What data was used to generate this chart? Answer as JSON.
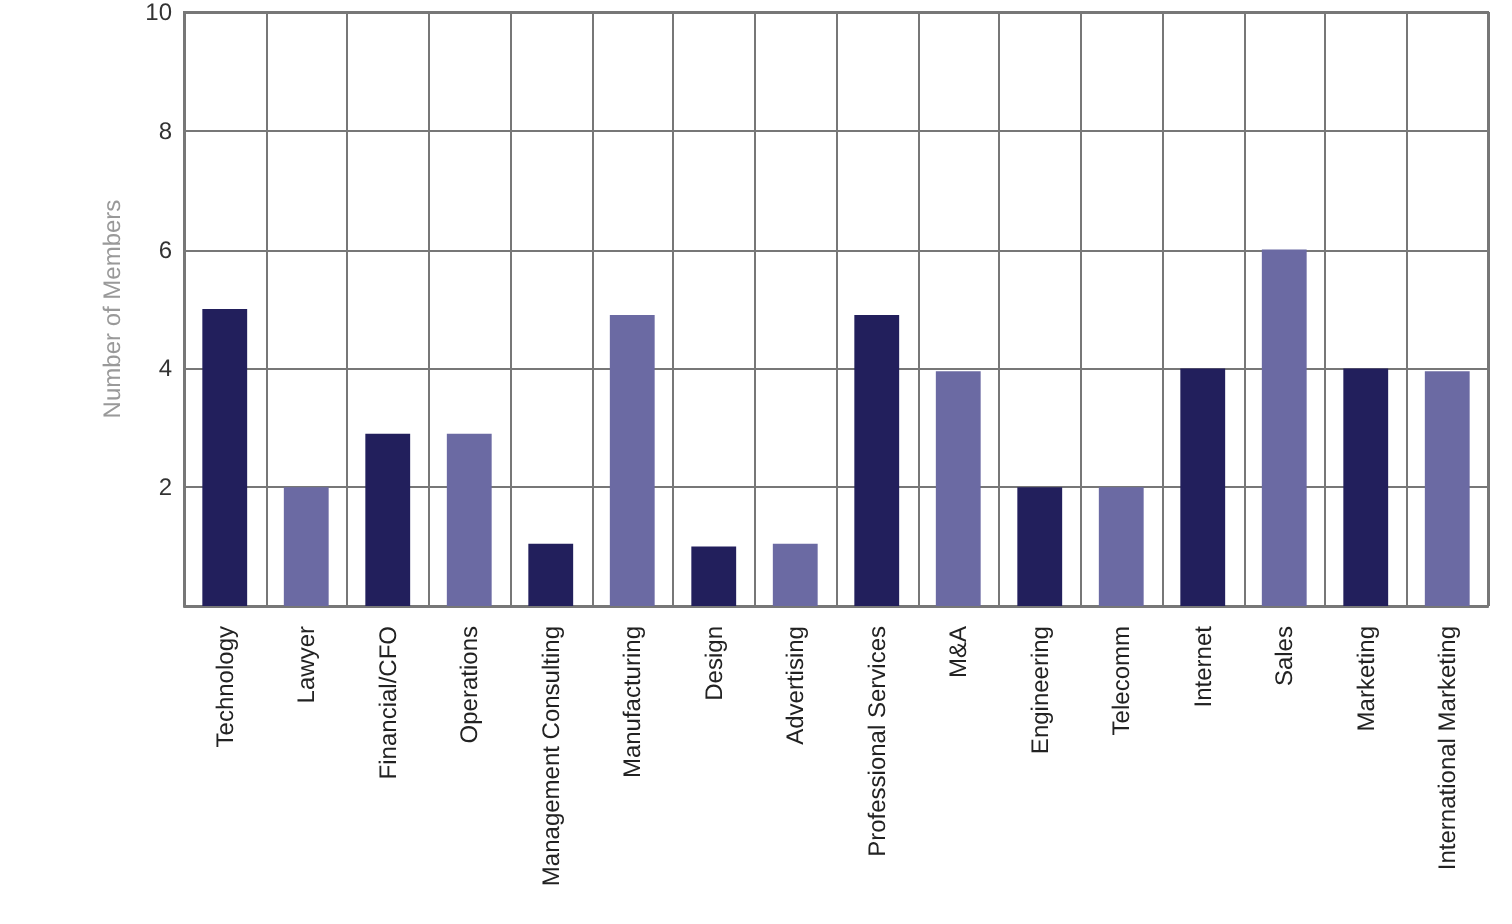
{
  "chart_data": {
    "type": "bar",
    "ylabel": "Number of Members",
    "categories": [
      "Technology",
      "Lawyer",
      "Financial/CFO",
      "Operations",
      "Management Consulting",
      "Manufacturing",
      "Design",
      "Advertising",
      "Professional Services",
      "M&A",
      "Engineering",
      "Telecomm",
      "Internet",
      "Sales",
      "Marketing",
      "International Marketing"
    ],
    "values": [
      5,
      2,
      2.9,
      2.9,
      1.05,
      4.9,
      1,
      1.05,
      4.9,
      3.95,
      2,
      2,
      4,
      6,
      4,
      3.95
    ],
    "colors": [
      "#221f5c",
      "#6b6aa3",
      "#221f5c",
      "#6b6aa3",
      "#221f5c",
      "#6b6aa3",
      "#221f5c",
      "#6b6aa3",
      "#221f5c",
      "#6b6aa3",
      "#221f5c",
      "#6b6aa3",
      "#221f5c",
      "#6b6aa3",
      "#221f5c",
      "#6b6aa3"
    ],
    "ylim": [
      0,
      10
    ],
    "yticks": [
      2,
      4,
      6,
      8,
      10
    ],
    "grid": true
  }
}
